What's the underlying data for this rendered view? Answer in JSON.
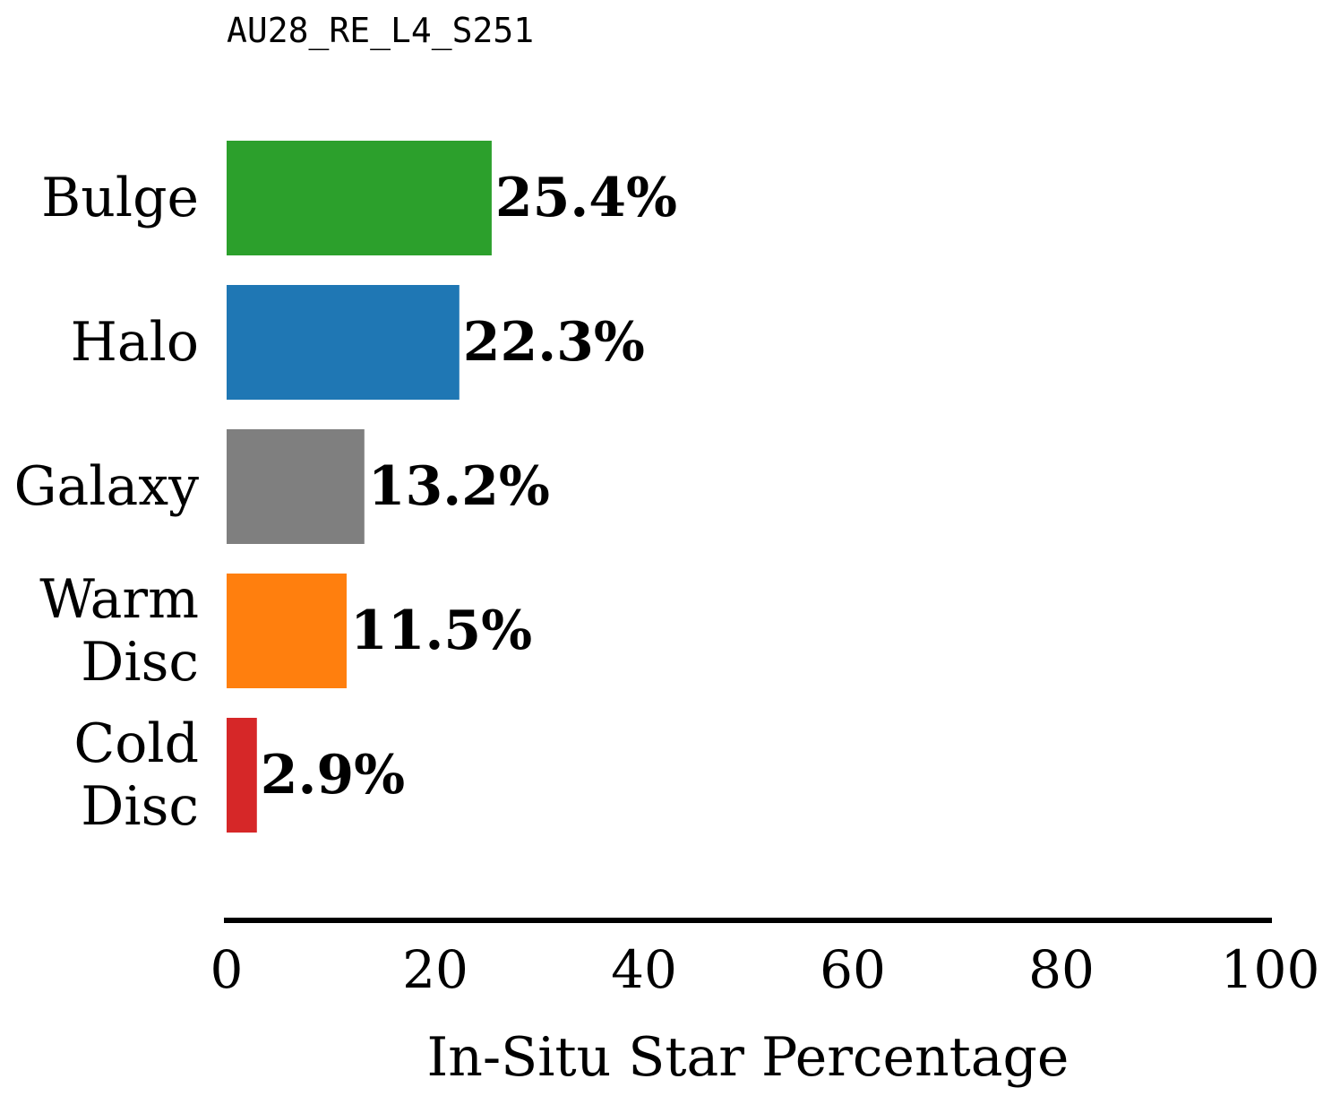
{
  "chart_data": {
    "type": "bar",
    "orientation": "horizontal",
    "title": "AU28_RE_L4_S251",
    "xlabel": "In-Situ Star Percentage",
    "ylabel": "",
    "xlim": [
      0,
      100
    ],
    "xticks": [
      0,
      20,
      40,
      60,
      80,
      100
    ],
    "grid": false,
    "categories": [
      [
        "Bulge"
      ],
      [
        "Halo"
      ],
      [
        "Galaxy"
      ],
      [
        "Warm",
        "Disc"
      ],
      [
        "Cold",
        "Disc"
      ]
    ],
    "values": [
      25.4,
      22.3,
      13.2,
      11.5,
      2.9
    ],
    "value_labels": [
      "25.4%",
      "22.3%",
      "13.2%",
      "11.5%",
      "2.9%"
    ],
    "colors": [
      "#2ca02c",
      "#1f77b4",
      "#7f7f7f",
      "#ff7f0e",
      "#d62728"
    ]
  }
}
